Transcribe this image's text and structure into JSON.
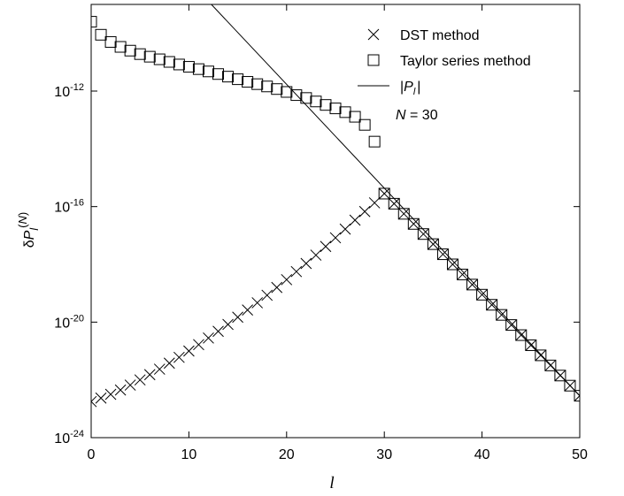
{
  "chart_data": {
    "type": "scatter",
    "xlabel": "l",
    "ylabel": "δP_l^(N)",
    "xlim": [
      0,
      50
    ],
    "ylim_log10": [
      -24,
      -9
    ],
    "log_y": true,
    "x_ticks": [
      0,
      10,
      20,
      30,
      40,
      50
    ],
    "x_tick_labels": [
      "0",
      "10",
      "20",
      "30",
      "40",
      "50"
    ],
    "y_tick_exponents": [
      -24,
      -20,
      -16,
      -12
    ],
    "grid": false,
    "legend_position": "top-right",
    "annotation": {
      "var": "N",
      "text": "= 30"
    },
    "series": [
      {
        "name": "DST method",
        "marker": "cross",
        "x": [
          0,
          1,
          2,
          3,
          4,
          5,
          6,
          7,
          8,
          9,
          10,
          11,
          12,
          13,
          14,
          15,
          16,
          17,
          18,
          19,
          20,
          21,
          22,
          23,
          24,
          25,
          26,
          27,
          28,
          29,
          30,
          31,
          32,
          33,
          34,
          35,
          36,
          37,
          38,
          39,
          40,
          41,
          42,
          43,
          44,
          45,
          46,
          47,
          48,
          49,
          50
        ],
        "log10_y": [
          -22.75,
          -22.63,
          -22.5,
          -22.35,
          -22.18,
          -22.0,
          -21.82,
          -21.63,
          -21.42,
          -21.22,
          -21.0,
          -20.78,
          -20.55,
          -20.32,
          -20.08,
          -19.83,
          -19.58,
          -19.33,
          -19.07,
          -18.8,
          -18.53,
          -18.25,
          -17.97,
          -17.68,
          -17.38,
          -17.08,
          -16.78,
          -16.47,
          -16.17,
          -15.87,
          -15.55,
          -15.9,
          -16.25,
          -16.6,
          -16.95,
          -17.3,
          -17.65,
          -18.0,
          -18.35,
          -18.7,
          -19.05,
          -19.4,
          -19.75,
          -20.1,
          -20.45,
          -20.8,
          -21.15,
          -21.5,
          -21.85,
          -22.2,
          -22.55
        ]
      },
      {
        "name": "Taylor series method",
        "marker": "square",
        "x": [
          0,
          1,
          2,
          3,
          4,
          5,
          6,
          7,
          8,
          9,
          10,
          11,
          12,
          13,
          14,
          15,
          16,
          17,
          18,
          19,
          20,
          21,
          22,
          23,
          24,
          25,
          26,
          27,
          28,
          29,
          30,
          31,
          32,
          33,
          34,
          35,
          36,
          37,
          38,
          39,
          40,
          41,
          42,
          43,
          44,
          45,
          46,
          47,
          48,
          49,
          50
        ],
        "log10_y": [
          -9.6,
          -10.05,
          -10.3,
          -10.47,
          -10.6,
          -10.72,
          -10.81,
          -10.9,
          -10.99,
          -11.08,
          -11.16,
          -11.24,
          -11.32,
          -11.41,
          -11.5,
          -11.59,
          -11.68,
          -11.76,
          -11.84,
          -11.93,
          -12.03,
          -12.14,
          -12.24,
          -12.36,
          -12.48,
          -12.6,
          -12.73,
          -12.89,
          -13.17,
          -13.75,
          -15.55,
          -15.9,
          -16.25,
          -16.6,
          -16.95,
          -17.3,
          -17.65,
          -18.0,
          -18.35,
          -18.7,
          -19.05,
          -19.4,
          -19.75,
          -20.1,
          -20.45,
          -20.8,
          -21.15,
          -21.5,
          -21.85,
          -22.2,
          -22.55
        ]
      },
      {
        "name": "|P_l|",
        "marker": "line",
        "x": [
          12.3,
          50
        ],
        "log10_y": [
          -9,
          -22.55
        ]
      }
    ]
  }
}
